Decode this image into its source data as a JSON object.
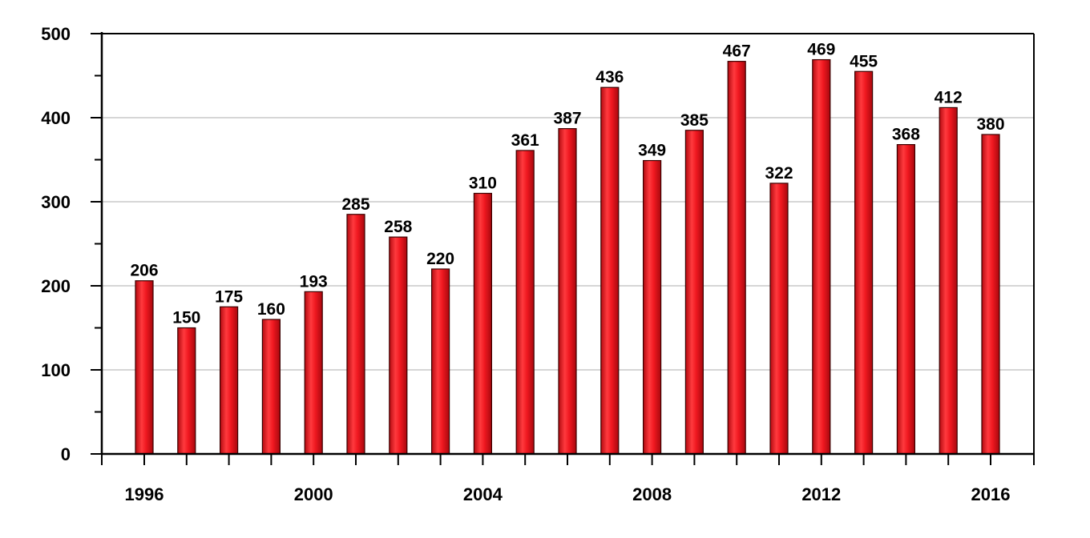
{
  "chart_data": {
    "type": "bar",
    "title": "",
    "xlabel": "",
    "ylabel": "",
    "categories": [
      "1996",
      "1997",
      "1998",
      "1999",
      "2000",
      "2001",
      "2002",
      "2003",
      "2004",
      "2005",
      "2006",
      "2007",
      "2008",
      "2009",
      "2010",
      "2011",
      "2012",
      "2013",
      "2014",
      "2015",
      "2016"
    ],
    "values": [
      206,
      150,
      175,
      160,
      193,
      285,
      258,
      220,
      310,
      361,
      387,
      436,
      349,
      385,
      467,
      322,
      469,
      455,
      368,
      412,
      380
    ],
    "ylim": [
      0,
      500
    ],
    "y_ticks": [
      0,
      100,
      200,
      300,
      400,
      500
    ],
    "x_tick_labels": [
      "1996",
      "2000",
      "2004",
      "2008",
      "2012",
      "2016"
    ],
    "grid": "horizontal",
    "bar_color": "#e8141c",
    "data_labels": true,
    "legend": "none"
  }
}
